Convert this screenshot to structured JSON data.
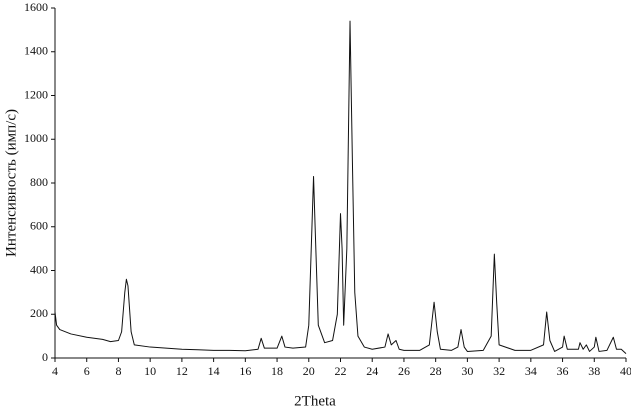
{
  "chart_data": {
    "type": "line",
    "x_label": "2Theta",
    "y_label": "Интенсивность (имп/с)",
    "color": "#111111",
    "xlim": [
      4,
      40
    ],
    "ylim": [
      0,
      1600
    ],
    "xticks": [
      4,
      6,
      8,
      10,
      12,
      14,
      16,
      18,
      20,
      22,
      24,
      26,
      28,
      30,
      32,
      34,
      36,
      38,
      40
    ],
    "yticks": [
      0,
      200,
      400,
      600,
      800,
      1000,
      1200,
      1400,
      1600
    ],
    "x": [
      4,
      4.1,
      4.3,
      5,
      6,
      7,
      7.5,
      8,
      8.2,
      8.4,
      8.5,
      8.6,
      8.8,
      9,
      10,
      11,
      12,
      13,
      14,
      15,
      16,
      16.8,
      17,
      17.2,
      18,
      18.3,
      18.5,
      19,
      19.8,
      20,
      20.2,
      20.3,
      20.4,
      20.6,
      21,
      21.5,
      21.8,
      22,
      22.1,
      22.2,
      22.4,
      22.6,
      22.75,
      22.9,
      23.1,
      23.5,
      24,
      24.8,
      25,
      25.2,
      25.5,
      25.7,
      26,
      27,
      27.6,
      27.9,
      28.1,
      28.3,
      29,
      29.4,
      29.6,
      29.8,
      30,
      31,
      31.5,
      31.7,
      31.85,
      32,
      33,
      34,
      34.8,
      35,
      35.2,
      35.5,
      36,
      36.1,
      36.3,
      37,
      37.1,
      37.3,
      37.5,
      37.7,
      38,
      38.1,
      38.3,
      38.8,
      39.2,
      39.4,
      39.7,
      40
    ],
    "values": [
      210,
      150,
      130,
      110,
      95,
      85,
      75,
      80,
      120,
      300,
      360,
      330,
      120,
      60,
      50,
      45,
      40,
      38,
      35,
      35,
      33,
      40,
      90,
      45,
      45,
      100,
      50,
      45,
      50,
      150,
      600,
      830,
      600,
      150,
      70,
      80,
      200,
      660,
      500,
      150,
      500,
      1540,
      900,
      300,
      100,
      50,
      40,
      50,
      110,
      60,
      80,
      40,
      35,
      35,
      60,
      255,
      120,
      40,
      35,
      50,
      130,
      50,
      30,
      35,
      100,
      475,
      250,
      60,
      35,
      35,
      60,
      210,
      80,
      30,
      50,
      100,
      40,
      40,
      70,
      40,
      60,
      30,
      50,
      95,
      30,
      35,
      95,
      40,
      40,
      20
    ]
  }
}
